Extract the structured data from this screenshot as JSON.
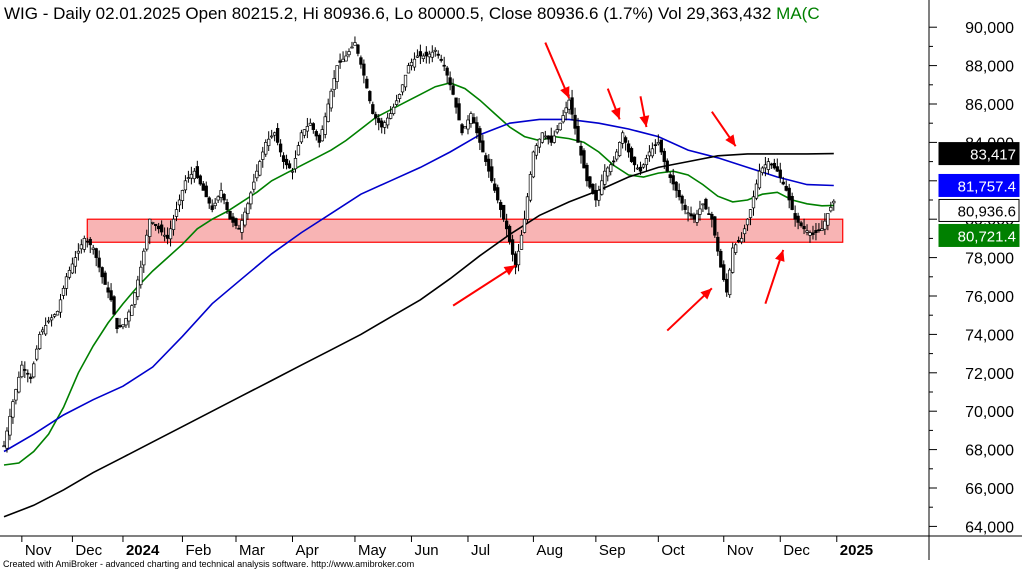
{
  "header": {
    "ticker": "WIG",
    "info": " - Daily 02.01.2025 Open 80215.2, Hi 80936.6, Lo 80000.5, Close 80936.6 (1.7%) Vol 29,363,432 ",
    "ma_label": "MA(C"
  },
  "credit": "Created with AmiBroker - advanced charting and technical analysis software. http://www.amibroker.com",
  "chart_data": {
    "type": "line",
    "subtype": "candlestick-with-moving-averages",
    "ylim": [
      63500,
      91000
    ],
    "y_ticks": [
      64000,
      66000,
      68000,
      70000,
      72000,
      74000,
      76000,
      78000,
      80000,
      82000,
      84000,
      86000,
      88000,
      90000
    ],
    "y_tick_labels": [
      "64,000",
      "66,000",
      "68,000",
      "70,000",
      "72,000",
      "74,000",
      "76,000",
      "78,000",
      "80,000",
      "82,000",
      "84,000",
      "86,000",
      "88,000",
      "90,000"
    ],
    "x_ticks": [
      {
        "label": "Nov",
        "t": 6,
        "bold": false
      },
      {
        "label": "Dec",
        "t": 23,
        "bold": false
      },
      {
        "label": "2024",
        "t": 40,
        "bold": true
      },
      {
        "label": "Feb",
        "t": 60,
        "bold": false
      },
      {
        "label": "Mar",
        "t": 78,
        "bold": false
      },
      {
        "label": "Apr",
        "t": 97,
        "bold": false
      },
      {
        "label": "May",
        "t": 118,
        "bold": false
      },
      {
        "label": "Jun",
        "t": 137,
        "bold": false
      },
      {
        "label": "Jul",
        "t": 156,
        "bold": false
      },
      {
        "label": "Aug",
        "t": 178,
        "bold": false
      },
      {
        "label": "Sep",
        "t": 199,
        "bold": false
      },
      {
        "label": "Oct",
        "t": 220,
        "bold": false
      },
      {
        "label": "Nov",
        "t": 242,
        "bold": false
      },
      {
        "label": "Dec",
        "t": 261,
        "bold": false
      },
      {
        "label": "2025",
        "t": 280,
        "bold": true
      }
    ],
    "t_range": [
      0,
      310
    ],
    "price_path": [
      [
        0,
        68200
      ],
      [
        3,
        70500
      ],
      [
        6,
        72400
      ],
      [
        9,
        71700
      ],
      [
        12,
        74000
      ],
      [
        15,
        74700
      ],
      [
        18,
        75200
      ],
      [
        21,
        77000
      ],
      [
        24,
        78000
      ],
      [
        27,
        79000
      ],
      [
        30,
        78500
      ],
      [
        33,
        77000
      ],
      [
        36,
        75800
      ],
      [
        38,
        74300
      ],
      [
        40,
        74500
      ],
      [
        43,
        75500
      ],
      [
        46,
        77500
      ],
      [
        49,
        80000
      ],
      [
        52,
        79500
      ],
      [
        55,
        79000
      ],
      [
        58,
        80500
      ],
      [
        61,
        82000
      ],
      [
        64,
        82500
      ],
      [
        67,
        81500
      ],
      [
        70,
        80500
      ],
      [
        73,
        81500
      ],
      [
        76,
        80000
      ],
      [
        79,
        79500
      ],
      [
        82,
        80800
      ],
      [
        85,
        82500
      ],
      [
        88,
        84000
      ],
      [
        91,
        84500
      ],
      [
        94,
        83000
      ],
      [
        97,
        82500
      ],
      [
        100,
        84500
      ],
      [
        103,
        85000
      ],
      [
        106,
        84000
      ],
      [
        109,
        86000
      ],
      [
        112,
        88000
      ],
      [
        115,
        88500
      ],
      [
        118,
        89200
      ],
      [
        121,
        87500
      ],
      [
        124,
        85500
      ],
      [
        127,
        84800
      ],
      [
        130,
        85500
      ],
      [
        133,
        86500
      ],
      [
        136,
        88000
      ],
      [
        139,
        88500
      ],
      [
        142,
        88500
      ],
      [
        145,
        88800
      ],
      [
        148,
        88000
      ],
      [
        151,
        86500
      ],
      [
        154,
        84500
      ],
      [
        157,
        85500
      ],
      [
        160,
        84000
      ],
      [
        163,
        82500
      ],
      [
        166,
        81000
      ],
      [
        169,
        79500
      ],
      [
        172,
        77500
      ],
      [
        175,
        80000
      ],
      [
        178,
        83500
      ],
      [
        181,
        84500
      ],
      [
        184,
        84000
      ],
      [
        187,
        85000
      ],
      [
        190,
        86200
      ],
      [
        193,
        84000
      ],
      [
        196,
        82000
      ],
      [
        199,
        81000
      ],
      [
        202,
        82500
      ],
      [
        205,
        83000
      ],
      [
        208,
        84500
      ],
      [
        211,
        83000
      ],
      [
        214,
        82500
      ],
      [
        217,
        83500
      ],
      [
        220,
        84000
      ],
      [
        223,
        82500
      ],
      [
        226,
        81500
      ],
      [
        229,
        80500
      ],
      [
        232,
        80000
      ],
      [
        235,
        80800
      ],
      [
        238,
        80000
      ],
      [
        241,
        77500
      ],
      [
        243,
        76200
      ],
      [
        245,
        78500
      ],
      [
        248,
        79000
      ],
      [
        251,
        80500
      ],
      [
        254,
        82500
      ],
      [
        257,
        83000
      ],
      [
        260,
        82500
      ],
      [
        263,
        81500
      ],
      [
        266,
        80000
      ],
      [
        269,
        79500
      ],
      [
        272,
        79200
      ],
      [
        275,
        79500
      ],
      [
        277,
        80300
      ],
      [
        279,
        80936
      ]
    ],
    "series": [
      {
        "color": "#008000",
        "points": [
          [
            0,
            67200
          ],
          [
            5,
            67300
          ],
          [
            10,
            67900
          ],
          [
            15,
            68800
          ],
          [
            20,
            70200
          ],
          [
            25,
            72000
          ],
          [
            30,
            73400
          ],
          [
            35,
            74600
          ],
          [
            40,
            75600
          ],
          [
            45,
            76500
          ],
          [
            50,
            77300
          ],
          [
            55,
            78000
          ],
          [
            60,
            78700
          ],
          [
            65,
            79500
          ],
          [
            70,
            80000
          ],
          [
            75,
            80400
          ],
          [
            80,
            80900
          ],
          [
            85,
            81400
          ],
          [
            90,
            82000
          ],
          [
            95,
            82400
          ],
          [
            100,
            82800
          ],
          [
            105,
            83200
          ],
          [
            110,
            83600
          ],
          [
            115,
            84100
          ],
          [
            120,
            84700
          ],
          [
            125,
            85300
          ],
          [
            130,
            85700
          ],
          [
            135,
            86100
          ],
          [
            140,
            86500
          ],
          [
            145,
            86900
          ],
          [
            150,
            87100
          ],
          [
            155,
            86800
          ],
          [
            160,
            86200
          ],
          [
            165,
            85500
          ],
          [
            170,
            84800
          ],
          [
            175,
            84300
          ],
          [
            180,
            84100
          ],
          [
            185,
            84300
          ],
          [
            190,
            84200
          ],
          [
            195,
            84000
          ],
          [
            200,
            83500
          ],
          [
            205,
            82800
          ],
          [
            210,
            82300
          ],
          [
            215,
            82200
          ],
          [
            220,
            82400
          ],
          [
            225,
            82500
          ],
          [
            230,
            82300
          ],
          [
            235,
            81800
          ],
          [
            240,
            81200
          ],
          [
            245,
            80900
          ],
          [
            250,
            81000
          ],
          [
            255,
            81300
          ],
          [
            260,
            81400
          ],
          [
            265,
            81000
          ],
          [
            270,
            80800
          ],
          [
            275,
            80700
          ],
          [
            279,
            80721
          ]
        ]
      },
      {
        "color": "#0000cc",
        "points": [
          [
            0,
            67900
          ],
          [
            10,
            68800
          ],
          [
            20,
            69800
          ],
          [
            30,
            70600
          ],
          [
            40,
            71300
          ],
          [
            50,
            72300
          ],
          [
            60,
            73900
          ],
          [
            70,
            75600
          ],
          [
            80,
            76900
          ],
          [
            90,
            78200
          ],
          [
            100,
            79300
          ],
          [
            110,
            80300
          ],
          [
            120,
            81300
          ],
          [
            130,
            82000
          ],
          [
            140,
            82700
          ],
          [
            150,
            83500
          ],
          [
            160,
            84400
          ],
          [
            170,
            85000
          ],
          [
            180,
            85200
          ],
          [
            190,
            85200
          ],
          [
            200,
            85000
          ],
          [
            210,
            84700
          ],
          [
            220,
            84300
          ],
          [
            230,
            83600
          ],
          [
            240,
            83200
          ],
          [
            250,
            82700
          ],
          [
            260,
            82200
          ],
          [
            270,
            81800
          ],
          [
            279,
            81757
          ]
        ]
      },
      {
        "color": "#000000",
        "points": [
          [
            0,
            64500
          ],
          [
            10,
            65100
          ],
          [
            20,
            65900
          ],
          [
            30,
            66800
          ],
          [
            40,
            67600
          ],
          [
            50,
            68400
          ],
          [
            60,
            69200
          ],
          [
            70,
            70000
          ],
          [
            80,
            70800
          ],
          [
            90,
            71600
          ],
          [
            100,
            72400
          ],
          [
            110,
            73200
          ],
          [
            120,
            74000
          ],
          [
            130,
            74900
          ],
          [
            140,
            75800
          ],
          [
            150,
            76900
          ],
          [
            160,
            78100
          ],
          [
            170,
            79200
          ],
          [
            180,
            80200
          ],
          [
            190,
            80900
          ],
          [
            200,
            81500
          ],
          [
            210,
            82200
          ],
          [
            220,
            82700
          ],
          [
            230,
            83000
          ],
          [
            240,
            83300
          ],
          [
            250,
            83400
          ],
          [
            260,
            83400
          ],
          [
            270,
            83400
          ],
          [
            279,
            83417
          ]
        ]
      }
    ],
    "support_zone": {
      "t_start": 28,
      "t_end": 282,
      "y_low": 78800,
      "y_high": 80000,
      "color": "#ff0000"
    },
    "price_tags": [
      {
        "label": "83,417",
        "value": 83417,
        "bg": "#000000",
        "fg": "#ffffff"
      },
      {
        "label": "81,757.4",
        "value": 81757.4,
        "bg": "#0000ff",
        "fg": "#ffffff"
      },
      {
        "label": "80,936.6",
        "value": 80936.6,
        "bg": "#ffffff",
        "fg": "#000000"
      },
      {
        "label": "80,721.4",
        "value": 80721.4,
        "bg": "#008000",
        "fg": "#ffffff"
      }
    ],
    "annotations": {
      "arrows_down": [
        [
          182,
          89200,
          190,
          86300
        ],
        [
          203,
          86800,
          207,
          85200
        ],
        [
          214,
          86400,
          216,
          84800
        ],
        [
          238,
          85600,
          246,
          83800
        ]
      ],
      "arrows_up": [
        [
          151,
          75500,
          172,
          77600
        ],
        [
          223,
          74200,
          238,
          76400
        ],
        [
          256,
          75600,
          262,
          78400
        ]
      ],
      "color": "#ff0000"
    },
    "legend": "none",
    "grid": false
  }
}
